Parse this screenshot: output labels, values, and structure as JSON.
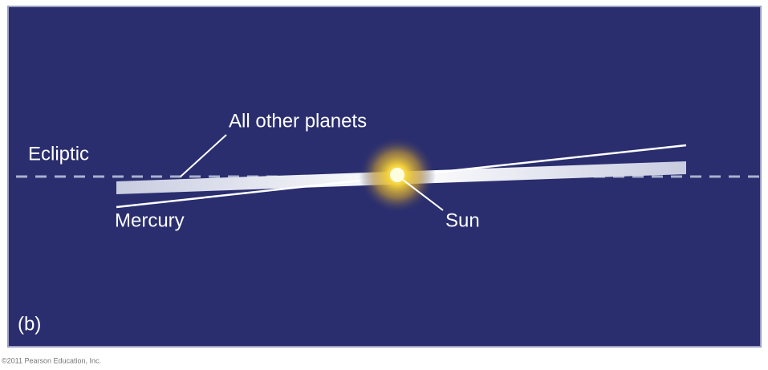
{
  "panel": {
    "labels": {
      "ecliptic": "Ecliptic",
      "other_planets": "All other planets",
      "mercury": "Mercury",
      "sun": "Sun",
      "panel_letter": "(b)"
    }
  },
  "footer": {
    "copyright": "©2011 Pearson Education, Inc."
  }
}
